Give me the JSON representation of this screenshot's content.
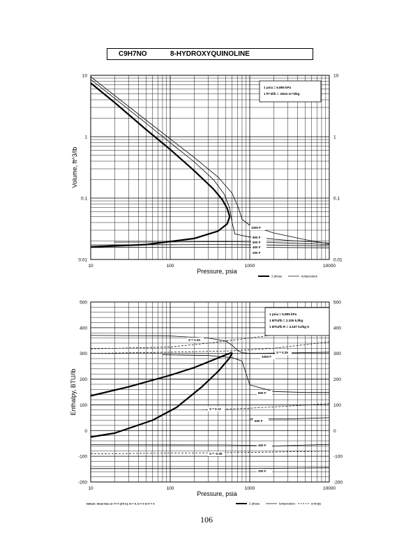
{
  "header": {
    "formula": "C9H7NO",
    "name": "8-HYDROXYQUINOLINE"
  },
  "page_number": "106",
  "chart_data": [
    {
      "type": "line",
      "title": "",
      "xlabel": "Pressure,  psia",
      "ylabel": "Volume, ft^3/lb",
      "xscale": "log",
      "yscale": "log",
      "xlim": [
        10,
        10000
      ],
      "ylim": [
        0.01,
        10
      ],
      "x_ticks": [
        "10",
        "100",
        "1000",
        "10000"
      ],
      "y_ticks": [
        "0.01",
        "0.1",
        "1",
        "10"
      ],
      "info_box": [
        "1 psia  =  6.895 kPa",
        "1 ft^3/lb  =  .0624 m^3/kg"
      ],
      "legend": [
        "2 phase",
        "temperature"
      ],
      "legend_position": "bottom-right",
      "isotherm_labels": [
        "1000 F",
        "800 F",
        "600 F",
        "400 F",
        "200 F"
      ],
      "series": [
        {
          "name": "2 phase",
          "style": "thick",
          "points": [
            [
              10,
              7.5
            ],
            [
              20,
              3.6
            ],
            [
              50,
              1.3
            ],
            [
              100,
              0.62
            ],
            [
              200,
              0.28
            ],
            [
              350,
              0.14
            ],
            [
              450,
              0.095
            ],
            [
              520,
              0.068
            ],
            [
              560,
              0.05
            ],
            [
              520,
              0.038
            ],
            [
              400,
              0.029
            ],
            [
              200,
              0.022
            ],
            [
              50,
              0.0175
            ],
            [
              10,
              0.016
            ]
          ]
        },
        {
          "name": "1000 F",
          "style": "thin",
          "points": [
            [
              10,
              9.5
            ],
            [
              50,
              1.85
            ],
            [
              100,
              0.92
            ],
            [
              200,
              0.46
            ],
            [
              400,
              0.22
            ],
            [
              600,
              0.12
            ],
            [
              720,
              0.07
            ],
            [
              800,
              0.045
            ],
            [
              1000,
              0.036
            ],
            [
              2000,
              0.027
            ],
            [
              5000,
              0.021
            ],
            [
              10000,
              0.018
            ]
          ]
        },
        {
          "name": "800 F",
          "style": "thin",
          "points": [
            [
              10,
              8.6
            ],
            [
              50,
              1.65
            ],
            [
              100,
              0.8
            ],
            [
              200,
              0.39
            ],
            [
              350,
              0.2
            ],
            [
              480,
              0.115
            ],
            [
              560,
              0.068
            ],
            [
              600,
              0.04
            ],
            [
              650,
              0.026
            ],
            [
              1000,
              0.0232
            ],
            [
              3000,
              0.0205
            ],
            [
              10000,
              0.0185
            ]
          ]
        },
        {
          "name": "600 F",
          "style": "thin",
          "points": [
            [
              20,
              0.0192
            ],
            [
              100,
              0.0193
            ],
            [
              500,
              0.0196
            ],
            [
              1000,
              0.0193
            ],
            [
              3000,
              0.0186
            ],
            [
              10000,
              0.0175
            ]
          ]
        },
        {
          "name": "400 F",
          "style": "thin",
          "points": [
            [
              10,
              0.0173
            ],
            [
              100,
              0.0174
            ],
            [
              500,
              0.0175
            ],
            [
              2000,
              0.0172
            ],
            [
              10000,
              0.0166
            ]
          ]
        },
        {
          "name": "200 F",
          "style": "thin",
          "points": [
            [
              10,
              0.0157
            ],
            [
              100,
              0.0158
            ],
            [
              1000,
              0.0158
            ],
            [
              10000,
              0.0155
            ]
          ]
        }
      ]
    },
    {
      "type": "line",
      "title": "",
      "xlabel": "Pressure,  psia",
      "ylabel": "Enthalpy, BTU/lb",
      "xscale": "log",
      "yscale": "linear",
      "xlim": [
        10,
        10000
      ],
      "ylim": [
        -200,
        500
      ],
      "x_ticks": [
        "10",
        "100",
        "1000",
        "10000"
      ],
      "y_ticks": [
        "-200",
        "-100",
        "0",
        "100",
        "200",
        "300",
        "400",
        "500"
      ],
      "info_box": [
        "1 psia  =  6.895 kPa",
        "1 BTU/lb  =  2.326 kJ/kg",
        "1 BTU/lb R  =  4.187 kJ/kg K"
      ],
      "legend": [
        "2 phase",
        "temperature",
        "entropy"
      ],
      "legend_position": "bottom-right",
      "footnote": "Datum: Ideal Gas @ 77 F (25 C),  H = 0,  S = 0 in F = 0",
      "isotherm_labels": [
        "1000 F",
        "800 F",
        "600 F",
        "400 F",
        "200 F"
      ],
      "entropy_labels": [
        "S = 0.33",
        "S = 0.26",
        "S = 0.12",
        "S = -0.05"
      ],
      "series": [
        {
          "name": "2 phase",
          "style": "thick",
          "points": [
            [
              10,
              135
            ],
            [
              30,
              170
            ],
            [
              100,
              215
            ],
            [
              200,
              245
            ],
            [
              350,
              275
            ],
            [
              500,
              295
            ],
            [
              580,
              302
            ],
            [
              600,
              300
            ],
            [
              550,
              280
            ],
            [
              400,
              230
            ],
            [
              250,
              170
            ],
            [
              120,
              90
            ],
            [
              60,
              40
            ],
            [
              20,
              -10
            ],
            [
              10,
              -25
            ]
          ]
        },
        {
          "name": "1000 F",
          "style": "thin",
          "points": [
            [
              10,
              370
            ],
            [
              100,
              368
            ],
            [
              300,
              360
            ],
            [
              500,
              348
            ],
            [
              600,
              332
            ],
            [
              700,
              312
            ],
            [
              800,
              303
            ],
            [
              1000,
              300
            ],
            [
              3000,
              302
            ],
            [
              10000,
              305
            ]
          ]
        },
        {
          "name": "800 F",
          "style": "thin",
          "points": [
            [
              80,
              295
            ],
            [
              300,
              292
            ],
            [
              600,
              284
            ],
            [
              800,
              270
            ],
            [
              1000,
              178
            ],
            [
              2000,
              152
            ],
            [
              5000,
              148
            ],
            [
              10000,
              148
            ]
          ]
        },
        {
          "name": "600 F",
          "style": "thin",
          "points": [
            [
              1000,
              45
            ],
            [
              3000,
              45
            ],
            [
              10000,
              50
            ]
          ]
        },
        {
          "name": "400 F",
          "style": "thin",
          "points": [
            [
              10,
              -55
            ],
            [
              500,
              -56
            ],
            [
              2000,
              -60
            ],
            [
              10000,
              -54
            ]
          ]
        },
        {
          "name": "200 F",
          "style": "thin",
          "points": [
            [
              10,
              -148
            ],
            [
              1000,
              -148
            ],
            [
              10000,
              -145
            ]
          ]
        },
        {
          "name": "S = 0.33",
          "style": "dashed",
          "points": [
            [
              10,
              318
            ],
            [
              100,
              325
            ],
            [
              300,
              340
            ],
            [
              1000,
              360
            ],
            [
              10000,
              400
            ]
          ]
        },
        {
          "name": "S = 0.26",
          "style": "dashed",
          "points": [
            [
              10,
              300
            ],
            [
              100,
              305
            ],
            [
              600,
              310
            ],
            [
              2000,
              320
            ],
            [
              10000,
              345
            ]
          ]
        },
        {
          "name": "S = 0.12",
          "style": "dashed",
          "points": [
            [
              250,
              80
            ],
            [
              1000,
              87
            ],
            [
              3000,
              95
            ],
            [
              10000,
              105
            ]
          ]
        },
        {
          "name": "S = -0.05",
          "style": "dashed",
          "points": [
            [
              10,
              -90
            ],
            [
              100,
              -88
            ],
            [
              1000,
              -85
            ],
            [
              10000,
              -80
            ]
          ]
        }
      ]
    }
  ]
}
